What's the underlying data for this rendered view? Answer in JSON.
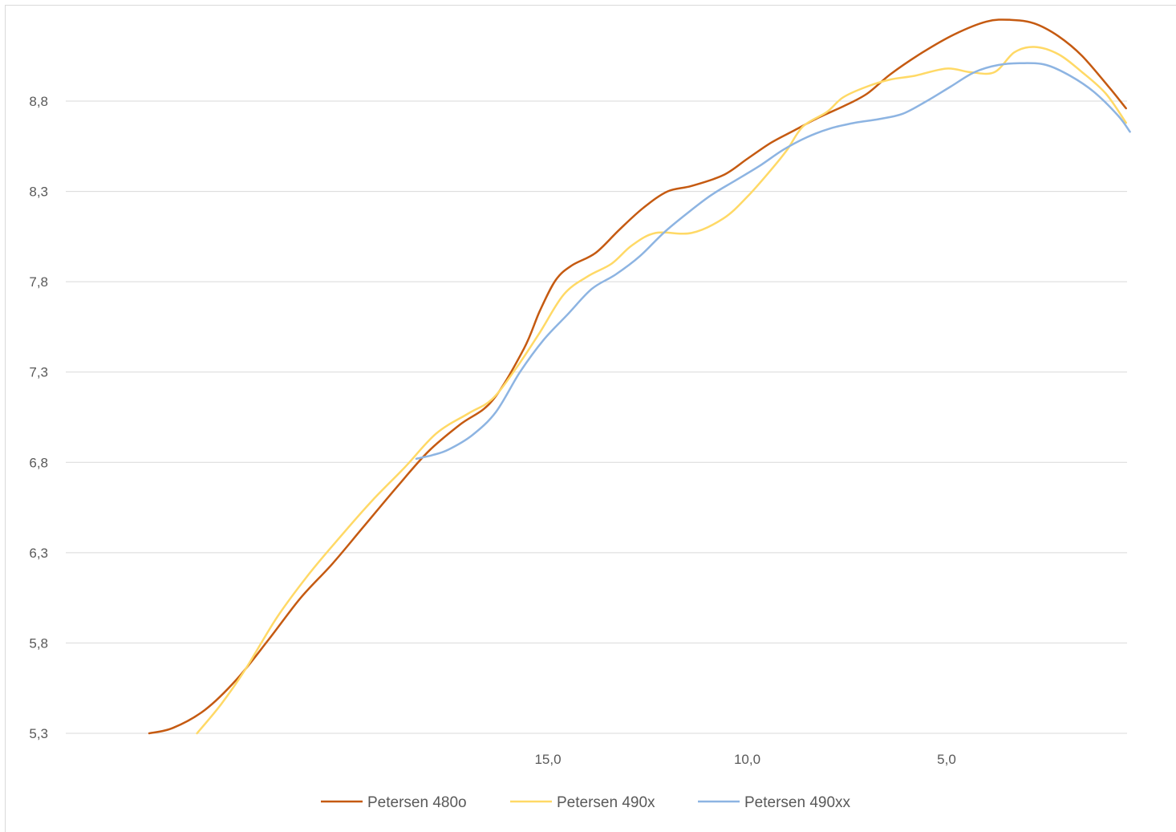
{
  "chart_data": {
    "type": "line",
    "x_reversed": true,
    "xlim": [
      0.2,
      26.0
    ],
    "ylim": [
      5.3,
      9.3
    ],
    "y_ticks": [
      5.3,
      5.8,
      6.3,
      6.8,
      7.3,
      7.8,
      8.3,
      8.8
    ],
    "y_tick_labels": [
      "5,3",
      "5,8",
      "6,3",
      "6,8",
      "7,3",
      "7,8",
      "8,3",
      "8,8"
    ],
    "x_ticks": [
      15.0,
      10.0,
      5.0
    ],
    "x_tick_labels": [
      "15,0",
      "10,0",
      "5,0"
    ],
    "grid": "horizontal",
    "legend_position": "bottom",
    "series": [
      {
        "name": "Petersen 480o",
        "color": "#C55A11",
        "points": [
          [
            25.0,
            5.3
          ],
          [
            24.4,
            5.33
          ],
          [
            23.6,
            5.43
          ],
          [
            22.8,
            5.6
          ],
          [
            22.0,
            5.82
          ],
          [
            21.2,
            6.05
          ],
          [
            20.4,
            6.24
          ],
          [
            19.6,
            6.45
          ],
          [
            18.8,
            6.66
          ],
          [
            18.0,
            6.86
          ],
          [
            17.2,
            7.01
          ],
          [
            16.4,
            7.14
          ],
          [
            15.6,
            7.43
          ],
          [
            15.2,
            7.64
          ],
          [
            14.8,
            7.81
          ],
          [
            14.4,
            7.89
          ],
          [
            13.8,
            7.96
          ],
          [
            13.2,
            8.09
          ],
          [
            12.6,
            8.21
          ],
          [
            12.0,
            8.3
          ],
          [
            11.4,
            8.33
          ],
          [
            10.6,
            8.39
          ],
          [
            10.0,
            8.48
          ],
          [
            9.4,
            8.57
          ],
          [
            8.8,
            8.64
          ],
          [
            8.2,
            8.71
          ],
          [
            7.6,
            8.77
          ],
          [
            7.0,
            8.84
          ],
          [
            6.4,
            8.95
          ],
          [
            5.6,
            9.07
          ],
          [
            4.8,
            9.17
          ],
          [
            4.0,
            9.24
          ],
          [
            3.4,
            9.25
          ],
          [
            2.8,
            9.23
          ],
          [
            2.2,
            9.16
          ],
          [
            1.6,
            9.05
          ],
          [
            0.9,
            8.87
          ],
          [
            0.5,
            8.76
          ]
        ]
      },
      {
        "name": "Petersen 490x",
        "color": "#FFD966",
        "points": [
          [
            23.8,
            5.3
          ],
          [
            23.2,
            5.46
          ],
          [
            22.6,
            5.65
          ],
          [
            21.8,
            5.94
          ],
          [
            21.0,
            6.18
          ],
          [
            20.2,
            6.39
          ],
          [
            19.4,
            6.59
          ],
          [
            18.6,
            6.77
          ],
          [
            17.8,
            6.96
          ],
          [
            17.0,
            7.07
          ],
          [
            16.4,
            7.15
          ],
          [
            15.8,
            7.32
          ],
          [
            15.2,
            7.52
          ],
          [
            14.6,
            7.73
          ],
          [
            14.0,
            7.83
          ],
          [
            13.4,
            7.9
          ],
          [
            12.9,
            8.0
          ],
          [
            12.3,
            8.07
          ],
          [
            11.4,
            8.07
          ],
          [
            10.6,
            8.15
          ],
          [
            10.0,
            8.27
          ],
          [
            9.4,
            8.42
          ],
          [
            9.0,
            8.53
          ],
          [
            8.6,
            8.66
          ],
          [
            8.0,
            8.74
          ],
          [
            7.6,
            8.82
          ],
          [
            7.0,
            8.88
          ],
          [
            6.4,
            8.92
          ],
          [
            5.8,
            8.94
          ],
          [
            5.0,
            8.98
          ],
          [
            4.4,
            8.96
          ],
          [
            3.8,
            8.96
          ],
          [
            3.3,
            9.07
          ],
          [
            2.8,
            9.1
          ],
          [
            2.2,
            9.06
          ],
          [
            1.6,
            8.96
          ],
          [
            1.0,
            8.84
          ],
          [
            0.5,
            8.68
          ]
        ]
      },
      {
        "name": "Petersen 490xx",
        "color": "#8DB4E2",
        "points": [
          [
            18.3,
            6.82
          ],
          [
            17.9,
            6.84
          ],
          [
            17.5,
            6.87
          ],
          [
            16.9,
            6.95
          ],
          [
            16.3,
            7.08
          ],
          [
            15.7,
            7.3
          ],
          [
            15.1,
            7.48
          ],
          [
            14.5,
            7.62
          ],
          [
            13.9,
            7.76
          ],
          [
            13.3,
            7.84
          ],
          [
            12.7,
            7.94
          ],
          [
            12.1,
            8.07
          ],
          [
            11.5,
            8.18
          ],
          [
            10.9,
            8.28
          ],
          [
            10.3,
            8.36
          ],
          [
            9.7,
            8.44
          ],
          [
            9.1,
            8.53
          ],
          [
            8.5,
            8.6
          ],
          [
            7.9,
            8.65
          ],
          [
            7.3,
            8.68
          ],
          [
            6.7,
            8.7
          ],
          [
            6.1,
            8.73
          ],
          [
            5.5,
            8.8
          ],
          [
            4.9,
            8.88
          ],
          [
            4.3,
            8.96
          ],
          [
            3.7,
            9.0
          ],
          [
            3.1,
            9.01
          ],
          [
            2.5,
            9.0
          ],
          [
            1.9,
            8.94
          ],
          [
            1.3,
            8.85
          ],
          [
            0.7,
            8.72
          ],
          [
            0.4,
            8.63
          ]
        ]
      }
    ]
  }
}
